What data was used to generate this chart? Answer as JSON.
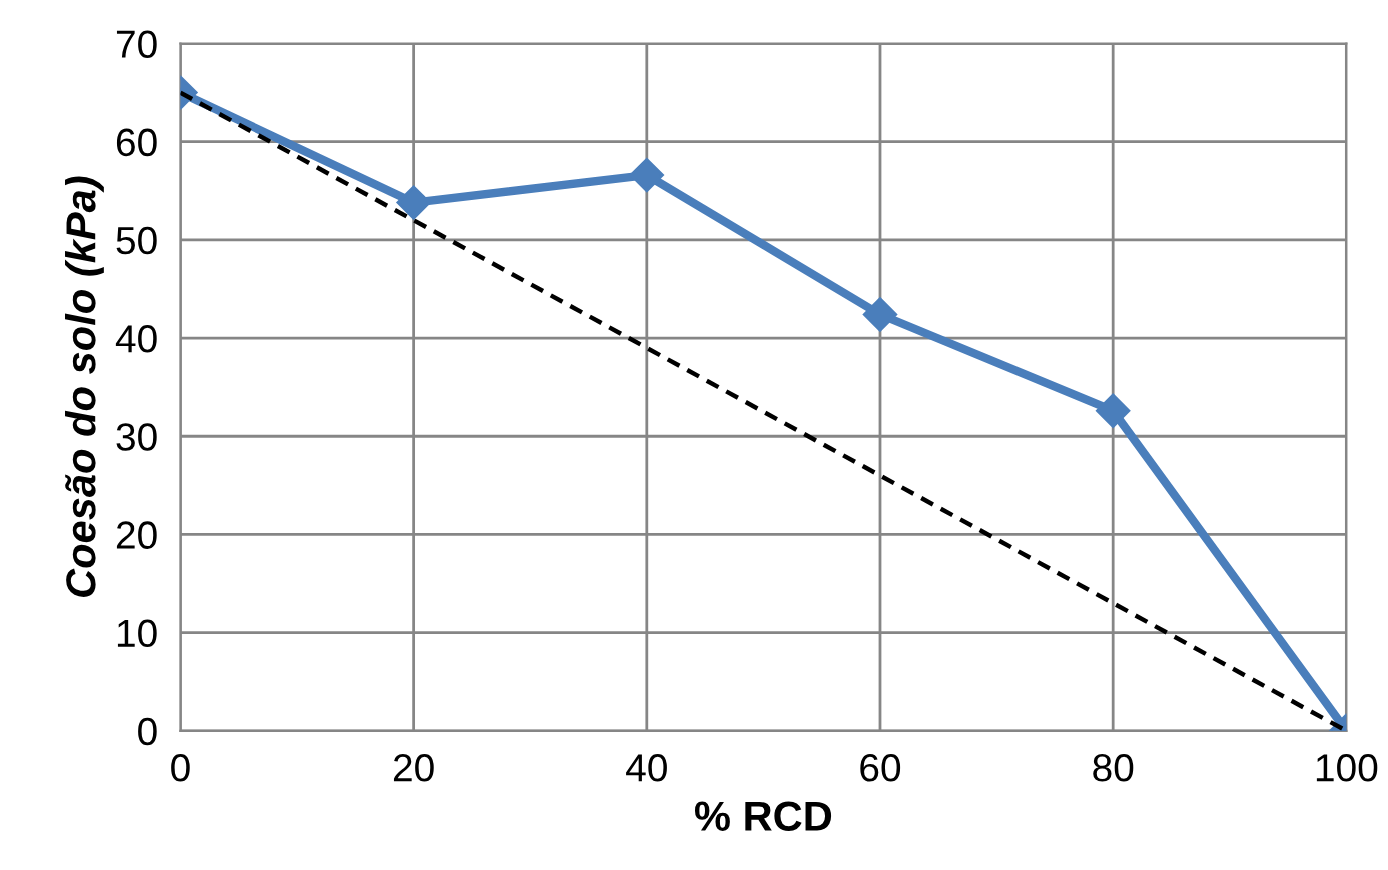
{
  "chart_data": {
    "type": "line",
    "xlabel": "% RCD",
    "ylabel": "Coesão do solo (kPa)",
    "xlim": [
      0,
      100
    ],
    "xticks": [
      0,
      20,
      40,
      60,
      80,
      100
    ],
    "ylim": [
      0,
      70
    ],
    "yticks": [
      0,
      10,
      20,
      30,
      40,
      50,
      60,
      70
    ],
    "grid": true,
    "series": [
      {
        "color": "#4a7ebb",
        "x": [
          0,
          20,
          40,
          60,
          80,
          100
        ],
        "values": [
          65,
          53.8,
          56.6,
          42.4,
          32.6,
          0
        ],
        "marker": "diamond",
        "line_style": "solid"
      },
      {
        "color": "#000000",
        "x": [
          0,
          100
        ],
        "values": [
          65,
          0
        ],
        "marker": "none",
        "line_style": "dashed"
      }
    ]
  }
}
